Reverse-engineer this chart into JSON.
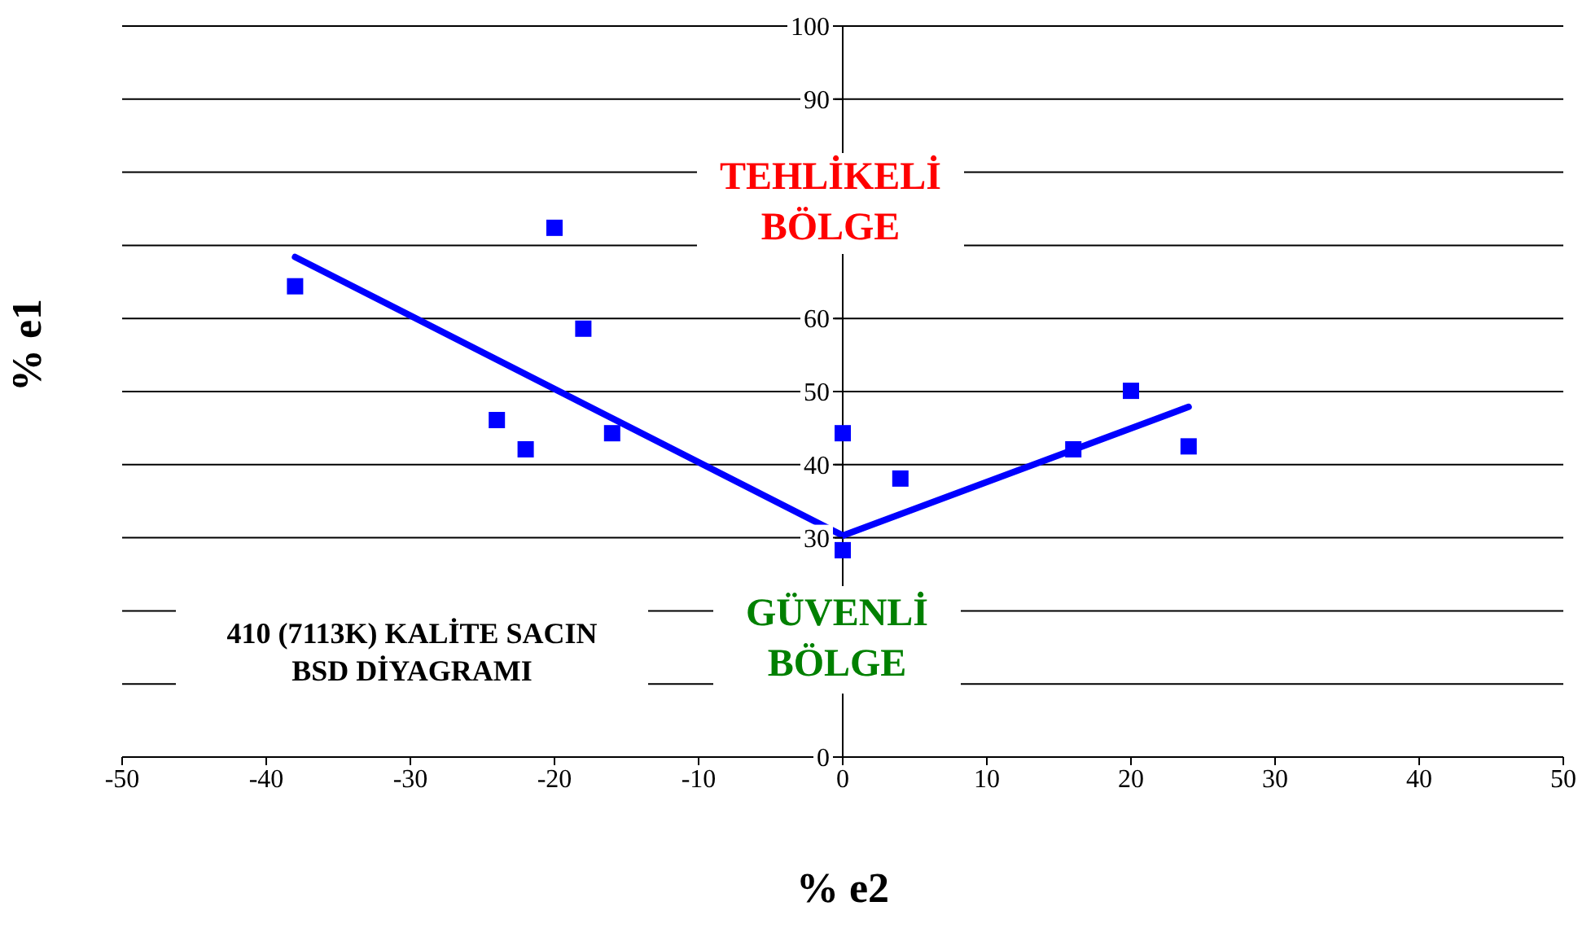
{
  "chart_data": {
    "type": "scatter",
    "xlabel": "% e2",
    "ylabel": "% e1",
    "xlim": [
      -50,
      50
    ],
    "xticks": [
      -50,
      -40,
      -30,
      -20,
      -10,
      0,
      10,
      20,
      30,
      40,
      50
    ],
    "ylim": [
      0,
      100
    ],
    "yticks": [
      0,
      {
        "value": 10,
        "label": null
      },
      {
        "value": 20,
        "label": null
      },
      30,
      40,
      50,
      60,
      {
        "value": 70,
        "label": null
      },
      {
        "value": 80,
        "label": null
      },
      90,
      100
    ],
    "grid": "y",
    "marker": "square",
    "series": [
      {
        "color": "#0000ff",
        "x": [
          -38,
          -20,
          -18,
          -24,
          -22,
          -16,
          0,
          0,
          4,
          16,
          20,
          24
        ],
        "values": [
          64.4,
          72.4,
          58.6,
          46.1,
          42.1,
          44.3,
          44.3,
          28.3,
          38.1,
          42.1,
          50.1,
          42.5
        ]
      },
      {
        "type": "line",
        "color": "#0000ff",
        "marker": "none",
        "x": [
          -38,
          0,
          24
        ],
        "values": [
          68.4,
          30.3,
          47.9
        ]
      }
    ],
    "annotations": [
      "TEHLİKELİ BÖLGE",
      "GÜVENLİ BÖLGE",
      "410 (7113K) KALİTE SACIN BSD DİYAGRAMI"
    ]
  }
}
